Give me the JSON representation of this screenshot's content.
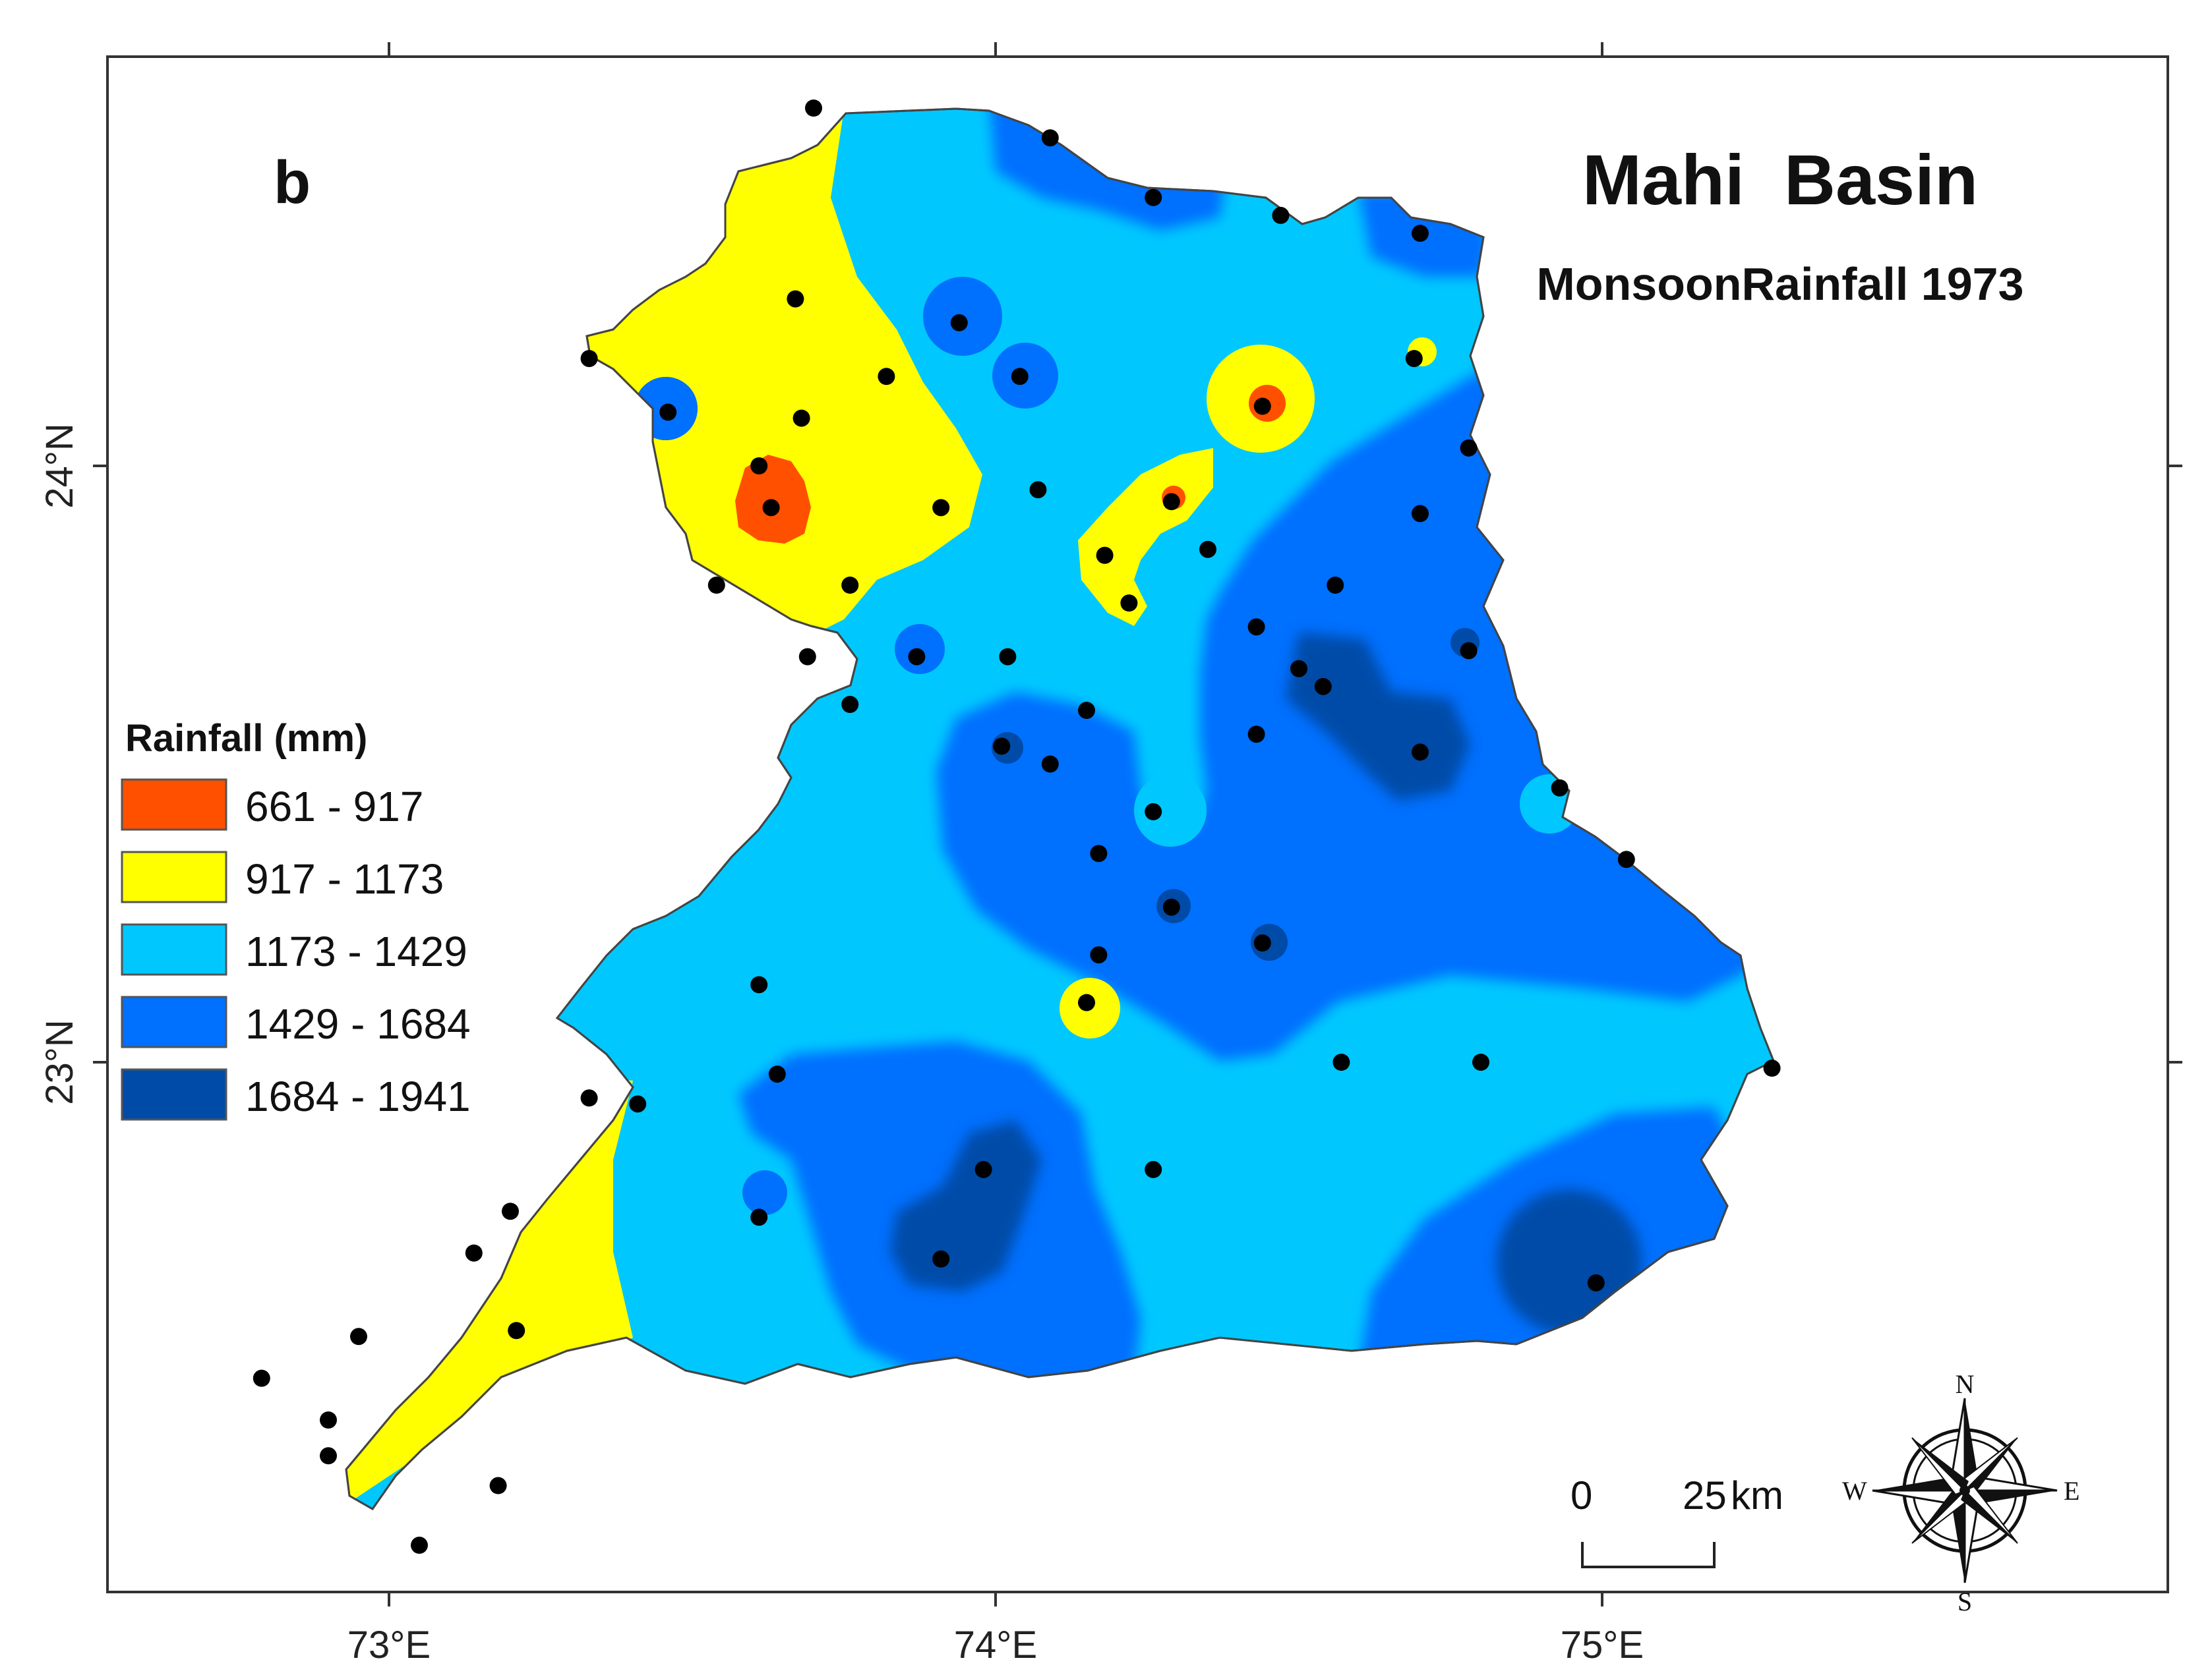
{
  "panel_label": "b",
  "title": "Mahi  Basin",
  "subtitle": "MonsoonRainfall 1973",
  "axes": {
    "x_ticks": [
      {
        "lon": 73,
        "label": "73°E"
      },
      {
        "lon": 74,
        "label": "74°E"
      },
      {
        "lon": 75,
        "label": "75°E"
      }
    ],
    "y_ticks": [
      {
        "lat": 24,
        "label": "24°N"
      },
      {
        "lat": 23,
        "label": "23°N"
      }
    ]
  },
  "legend": {
    "title": "Rainfall (mm)",
    "classes": [
      {
        "label": "661 - 917",
        "color": "#ff5000"
      },
      {
        "label": "917 - 1173",
        "color": "#ffff00"
      },
      {
        "label": "1173 - 1429",
        "color": "#00c8ff"
      },
      {
        "label": "1429 - 1684",
        "color": "#0070ff"
      },
      {
        "label": "1684 - 1941",
        "color": "#004ba8"
      }
    ]
  },
  "scale_bar": {
    "start": "0",
    "end": "25",
    "unit": "km"
  },
  "compass": {
    "n": "N",
    "s": "S",
    "e": "E",
    "w": "W"
  },
  "chart_data": {
    "type": "scatter",
    "description_units": "lon (°E), lat (°N)",
    "xlim": [
      72.55,
      75.95
    ],
    "ylim": [
      22.1,
      24.7
    ],
    "stations": [
      [
        73.7,
        24.6
      ],
      [
        74.09,
        24.55
      ],
      [
        74.26,
        24.45
      ],
      [
        74.47,
        24.42
      ],
      [
        74.7,
        24.39
      ],
      [
        73.67,
        24.28
      ],
      [
        73.94,
        24.24
      ],
      [
        73.33,
        24.18
      ],
      [
        74.69,
        24.18
      ],
      [
        73.82,
        24.15
      ],
      [
        74.04,
        24.15
      ],
      [
        73.46,
        24.09
      ],
      [
        73.68,
        24.08
      ],
      [
        74.44,
        24.1
      ],
      [
        74.78,
        24.03
      ],
      [
        73.61,
        24.0
      ],
      [
        73.63,
        23.93
      ],
      [
        73.91,
        23.93
      ],
      [
        74.07,
        23.96
      ],
      [
        74.29,
        23.94
      ],
      [
        74.7,
        23.92
      ],
      [
        74.18,
        23.85
      ],
      [
        74.35,
        23.86
      ],
      [
        73.54,
        23.8
      ],
      [
        73.76,
        23.8
      ],
      [
        74.56,
        23.8
      ],
      [
        74.22,
        23.77
      ],
      [
        74.43,
        23.73
      ],
      [
        74.78,
        23.69
      ],
      [
        73.69,
        23.68
      ],
      [
        73.87,
        23.68
      ],
      [
        74.02,
        23.68
      ],
      [
        74.5,
        23.66
      ],
      [
        74.54,
        23.63
      ],
      [
        73.76,
        23.6
      ],
      [
        74.15,
        23.59
      ],
      [
        74.43,
        23.55
      ],
      [
        74.01,
        23.53
      ],
      [
        74.7,
        23.52
      ],
      [
        74.09,
        23.5
      ],
      [
        74.93,
        23.46
      ],
      [
        74.26,
        23.42
      ],
      [
        74.17,
        23.35
      ],
      [
        75.04,
        23.34
      ],
      [
        74.29,
        23.26
      ],
      [
        74.44,
        23.2
      ],
      [
        74.17,
        23.18
      ],
      [
        73.61,
        23.13
      ],
      [
        74.15,
        23.1
      ],
      [
        74.57,
        23.0
      ],
      [
        74.8,
        23.0
      ],
      [
        75.28,
        22.99
      ],
      [
        73.64,
        22.98
      ],
      [
        73.33,
        22.94
      ],
      [
        73.41,
        22.93
      ],
      [
        73.98,
        22.82
      ],
      [
        74.26,
        22.82
      ],
      [
        73.2,
        22.75
      ],
      [
        73.61,
        22.74
      ],
      [
        73.14,
        22.68
      ],
      [
        73.91,
        22.67
      ],
      [
        74.99,
        22.63
      ],
      [
        72.95,
        22.54
      ],
      [
        73.21,
        22.55
      ],
      [
        72.79,
        22.47
      ],
      [
        72.9,
        22.4
      ],
      [
        72.9,
        22.34
      ],
      [
        73.18,
        22.29
      ],
      [
        73.05,
        22.19
      ]
    ]
  }
}
